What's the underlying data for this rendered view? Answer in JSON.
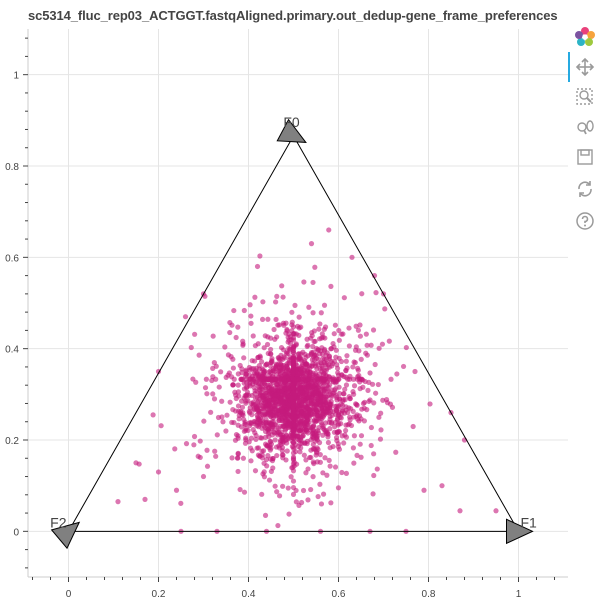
{
  "title": "sc5314_fluc_rep03_ACTGGT.fastqAligned.primary.out_dedup-gene_frame_preferences",
  "colors": {
    "points": "#c51b7d",
    "grid": "#e5e5e5",
    "axis": "#444444",
    "triangle_line": "#000000",
    "marker_fill": "#808080",
    "toolbar_active": "#26aae1",
    "toolbar_icon": "#9a9a9a"
  },
  "toolbar": {
    "items": [
      {
        "name": "bokeh-logo-icon",
        "active": false
      },
      {
        "name": "pan-tool-icon",
        "active": true
      },
      {
        "name": "box-zoom-icon",
        "active": false
      },
      {
        "name": "wheel-zoom-icon",
        "active": false
      },
      {
        "name": "save-icon",
        "active": false
      },
      {
        "name": "reset-icon",
        "active": false
      },
      {
        "name": "help-icon",
        "active": false
      }
    ]
  },
  "chart_data": {
    "type": "scatter",
    "title": "sc5314_fluc_rep03_ACTGGT.fastqAligned.primary.out_dedup-gene_frame_preferences",
    "xlim": [
      -0.09,
      1.11
    ],
    "ylim": [
      -0.1,
      1.1
    ],
    "grid": true,
    "x_ticks": [
      0,
      0.2,
      0.4,
      0.6,
      0.8,
      1
    ],
    "x_tick_labels": [
      "0",
      "0.2",
      "0.4",
      "0.6",
      "0.8",
      "1"
    ],
    "y_ticks": [
      0,
      0.2,
      0.4,
      0.6,
      0.8,
      1
    ],
    "y_tick_labels": [
      "0",
      "0.2",
      "0.4",
      "0.6",
      "0.8",
      "1"
    ],
    "triangle": {
      "vertices": [
        {
          "label": "F0",
          "x": 0.5,
          "y": 0.866
        },
        {
          "label": "F1",
          "x": 1.0,
          "y": 0.0
        },
        {
          "label": "F2",
          "x": 0.0,
          "y": 0.0
        }
      ]
    },
    "point_cloud": {
      "approx_count": 2200,
      "center": [
        0.5,
        0.29
      ],
      "core_spread": [
        0.055,
        0.05
      ],
      "outer_spread": [
        0.1,
        0.1
      ],
      "color": "#c51b7d",
      "alpha": 0.6
    },
    "points_highlight": [
      {
        "x": 0.11,
        "y": 0.065
      },
      {
        "x": 0.17,
        "y": 0.07
      },
      {
        "x": 0.2,
        "y": 0.13
      },
      {
        "x": 0.15,
        "y": 0.15
      },
      {
        "x": 0.25,
        "y": 0.0
      },
      {
        "x": 0.33,
        "y": 0.0
      },
      {
        "x": 0.44,
        "y": 0.0
      },
      {
        "x": 0.56,
        "y": 0.0
      },
      {
        "x": 0.67,
        "y": 0.0
      },
      {
        "x": 0.75,
        "y": 0.0
      },
      {
        "x": 0.87,
        "y": 0.045
      },
      {
        "x": 0.95,
        "y": 0.045
      },
      {
        "x": 0.2,
        "y": 0.35
      },
      {
        "x": 0.3,
        "y": 0.52
      },
      {
        "x": 0.26,
        "y": 0.47
      },
      {
        "x": 0.7,
        "y": 0.52
      },
      {
        "x": 0.77,
        "y": 0.35
      },
      {
        "x": 0.85,
        "y": 0.26
      },
      {
        "x": 0.88,
        "y": 0.2
      },
      {
        "x": 0.68,
        "y": 0.56
      },
      {
        "x": 0.63,
        "y": 0.6
      },
      {
        "x": 0.42,
        "y": 0.58
      },
      {
        "x": 0.54,
        "y": 0.63
      },
      {
        "x": 0.79,
        "y": 0.09
      },
      {
        "x": 0.83,
        "y": 0.1
      },
      {
        "x": 0.24,
        "y": 0.09
      },
      {
        "x": 0.3,
        "y": 0.12
      }
    ]
  }
}
